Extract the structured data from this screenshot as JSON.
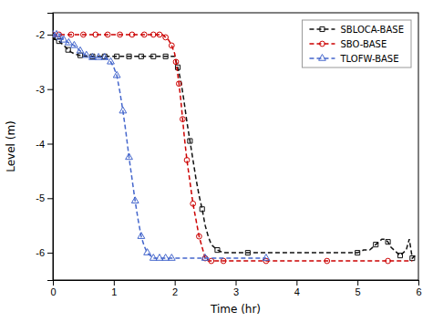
{
  "chart_data": {
    "type": "line",
    "xlabel": "Time (hr)",
    "ylabel": "Level (m)",
    "xlim": [
      0,
      6
    ],
    "ylim": [
      -6.5,
      -1.6
    ],
    "xticks": [
      0,
      1,
      2,
      3,
      4,
      5,
      6
    ],
    "yticks": [
      -6,
      -5,
      -4,
      -3,
      -2
    ],
    "grid": false,
    "legend": "upper right",
    "series": [
      {
        "name": "SBLOCA-BASE",
        "color": "#111111",
        "line_style": "dashed",
        "marker": "square",
        "x": [
          0.0,
          0.02,
          0.04,
          0.07,
          0.1,
          0.13,
          0.16,
          0.2,
          0.25,
          0.3,
          0.35,
          0.4,
          0.45,
          0.5,
          0.55,
          0.6,
          0.65,
          0.7,
          0.75,
          0.8,
          0.85,
          0.9,
          0.95,
          1.0,
          1.05,
          1.1,
          1.15,
          1.2,
          1.25,
          1.3,
          1.35,
          1.4,
          1.45,
          1.5,
          1.55,
          1.6,
          1.65,
          1.7,
          1.75,
          1.8,
          1.85,
          1.9,
          1.95,
          2.0,
          2.05,
          2.1,
          2.15,
          2.2,
          2.25,
          2.3,
          2.35,
          2.4,
          2.45,
          2.5,
          2.55,
          2.6,
          2.7,
          2.8,
          2.9,
          3.0,
          3.2,
          3.5,
          4.0,
          4.5,
          5.0,
          5.1,
          5.2,
          5.25,
          5.3,
          5.35,
          5.4,
          5.45,
          5.5,
          5.55,
          5.6,
          5.65,
          5.7,
          5.75,
          5.8,
          5.85,
          5.9,
          5.95
        ],
        "values": [
          -2.05,
          -2.07,
          -2.09,
          -2.1,
          -2.12,
          -2.15,
          -2.18,
          -2.22,
          -2.28,
          -2.32,
          -2.35,
          -2.37,
          -2.38,
          -2.39,
          -2.4,
          -2.4,
          -2.4,
          -2.4,
          -2.4,
          -2.4,
          -2.4,
          -2.4,
          -2.4,
          -2.4,
          -2.4,
          -2.4,
          -2.4,
          -2.4,
          -2.4,
          -2.4,
          -2.4,
          -2.4,
          -2.4,
          -2.4,
          -2.4,
          -2.4,
          -2.4,
          -2.4,
          -2.4,
          -2.4,
          -2.4,
          -2.4,
          -2.4,
          -2.4,
          -2.6,
          -2.85,
          -3.2,
          -3.6,
          -3.95,
          -4.3,
          -4.65,
          -4.95,
          -5.2,
          -5.5,
          -5.7,
          -5.85,
          -5.95,
          -6.0,
          -6.0,
          -6.0,
          -6.0,
          -6.0,
          -6.0,
          -6.0,
          -6.0,
          -5.95,
          -5.95,
          -5.9,
          -5.85,
          -5.8,
          -5.75,
          -5.75,
          -5.8,
          -5.9,
          -5.95,
          -6.0,
          -6.05,
          -6.0,
          -5.95,
          -5.75,
          -6.1,
          -6.05
        ]
      },
      {
        "name": "SBO-BASE",
        "color": "#cc0000",
        "line_style": "dashed",
        "marker": "circle",
        "x": [
          0.0,
          0.05,
          0.1,
          0.2,
          0.3,
          0.4,
          0.5,
          0.6,
          0.7,
          0.8,
          0.9,
          1.0,
          1.1,
          1.2,
          1.3,
          1.4,
          1.5,
          1.6,
          1.65,
          1.7,
          1.75,
          1.8,
          1.85,
          1.9,
          1.95,
          2.0,
          2.02,
          2.04,
          2.07,
          2.1,
          2.13,
          2.16,
          2.2,
          2.25,
          2.3,
          2.35,
          2.4,
          2.45,
          2.5,
          2.55,
          2.6,
          2.7,
          2.8,
          3.0,
          3.5,
          4.0,
          4.5,
          5.0,
          5.5,
          5.9
        ],
        "values": [
          -2.0,
          -2.0,
          -2.0,
          -2.0,
          -2.0,
          -2.0,
          -2.0,
          -2.0,
          -2.0,
          -2.0,
          -2.0,
          -2.0,
          -2.0,
          -2.0,
          -2.0,
          -2.0,
          -2.0,
          -2.0,
          -2.0,
          -2.0,
          -2.0,
          -2.0,
          -2.05,
          -2.1,
          -2.2,
          -2.35,
          -2.5,
          -2.65,
          -2.9,
          -3.2,
          -3.55,
          -3.9,
          -4.3,
          -4.7,
          -5.1,
          -5.4,
          -5.7,
          -5.9,
          -6.1,
          -6.15,
          -6.15,
          -6.15,
          -6.15,
          -6.15,
          -6.15,
          -6.15,
          -6.15,
          -6.15,
          -6.15,
          -6.15
        ]
      },
      {
        "name": "TLOFW-BASE",
        "color": "#4466cc",
        "line_style": "dashed",
        "marker": "triangle",
        "x": [
          0.0,
          0.03,
          0.06,
          0.09,
          0.12,
          0.15,
          0.18,
          0.22,
          0.26,
          0.3,
          0.35,
          0.4,
          0.45,
          0.5,
          0.55,
          0.6,
          0.65,
          0.7,
          0.75,
          0.8,
          0.85,
          0.9,
          0.95,
          1.0,
          1.05,
          1.1,
          1.15,
          1.2,
          1.25,
          1.3,
          1.35,
          1.4,
          1.45,
          1.5,
          1.55,
          1.6,
          1.65,
          1.7,
          1.75,
          1.8,
          1.85,
          1.9,
          1.95,
          2.0,
          2.5,
          3.0,
          3.5
        ],
        "values": [
          -2.0,
          -2.0,
          -2.0,
          -2.02,
          -2.05,
          -2.08,
          -2.1,
          -2.12,
          -2.15,
          -2.17,
          -2.2,
          -2.25,
          -2.3,
          -2.35,
          -2.38,
          -2.4,
          -2.42,
          -2.42,
          -2.42,
          -2.42,
          -2.42,
          -2.45,
          -2.5,
          -2.6,
          -2.75,
          -3.05,
          -3.4,
          -3.8,
          -4.25,
          -4.65,
          -5.05,
          -5.4,
          -5.7,
          -5.88,
          -6.0,
          -6.05,
          -6.1,
          -6.1,
          -6.1,
          -6.1,
          -6.1,
          -6.1,
          -6.1,
          -6.1,
          -6.1,
          -6.1,
          -6.1
        ]
      }
    ]
  }
}
